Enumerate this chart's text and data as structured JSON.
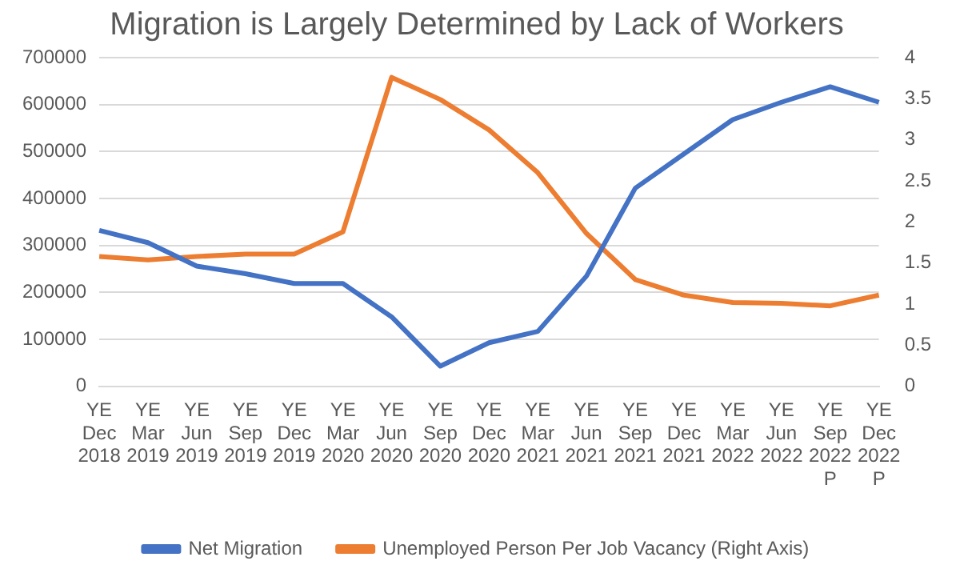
{
  "chart_data": {
    "type": "line",
    "title": "Migration is Largely Determined by Lack of Workers",
    "categories": [
      "YE Dec 2018",
      "YE Mar 2019",
      "YE Jun 2019",
      "YE Sep 2019",
      "YE Dec 2019",
      "YE Mar 2020",
      "YE Jun 2020",
      "YE Sep 2020",
      "YE Dec 2020",
      "YE Mar 2021",
      "YE Jun 2021",
      "YE Sep 2021",
      "YE Dec 2021",
      "YE Mar 2022",
      "YE Jun 2022",
      "YE Sep 2022 P",
      "YE Dec 2022 P"
    ],
    "series": [
      {
        "name": "Net Migration",
        "color": "#4472c4",
        "values": [
          332000,
          306000,
          256000,
          240000,
          219000,
          219000,
          148000,
          43000,
          93000,
          117000,
          235000,
          422000,
          495000,
          568000,
          605000,
          638000,
          605000
        ]
      },
      {
        "name": "Unemployed Person Per Job Vacancy (Right Axis)",
        "color": "#ed7d31",
        "axis": "y2",
        "values": [
          1.58,
          1.54,
          1.58,
          1.61,
          1.61,
          1.88,
          3.76,
          3.49,
          3.12,
          2.6,
          1.86,
          1.3,
          1.11,
          1.02,
          1.01,
          0.98,
          1.11
        ]
      }
    ],
    "ylim": [
      0,
      700000
    ],
    "yticks": [
      0,
      100000,
      200000,
      300000,
      400000,
      500000,
      600000,
      700000
    ],
    "y2lim": [
      0,
      4
    ],
    "y2ticks": [
      0,
      0.5,
      1,
      1.5,
      2,
      2.5,
      3,
      3.5,
      4
    ],
    "grid": "y",
    "legend": "bottom",
    "marker": "none",
    "line_style": "solid"
  }
}
